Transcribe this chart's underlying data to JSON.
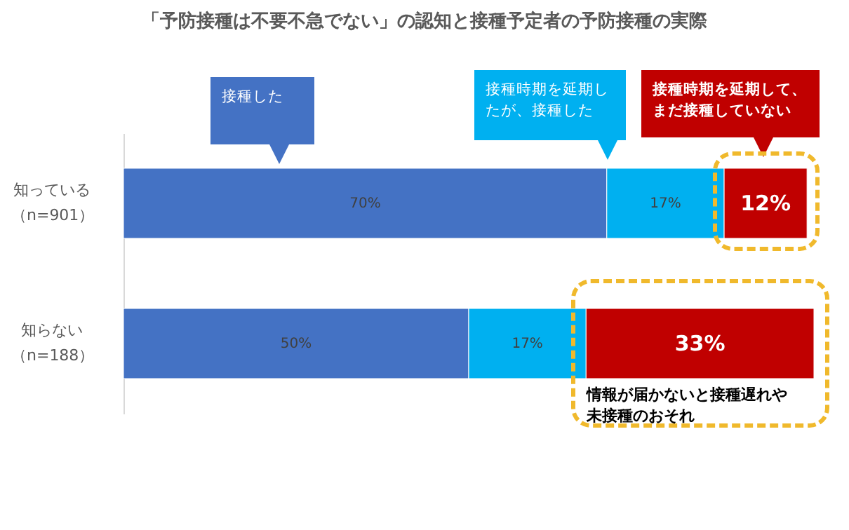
{
  "chart_data": {
    "type": "bar",
    "orientation": "horizontal",
    "stacked": true,
    "title": "「予防接種は不要不急でない」の認知と接種予定者の予防接種の実際",
    "categories": [
      "知っている（n=901）",
      "知らない（n=188）"
    ],
    "series": [
      {
        "name": "接種した",
        "color": "#4472c4",
        "values": [
          70,
          50
        ],
        "value_labels": [
          "70%",
          "50%"
        ]
      },
      {
        "name": "接種時期を延期したが、接種した",
        "color": "#00b0f0",
        "values": [
          17,
          17
        ],
        "value_labels": [
          "17%",
          "17%"
        ]
      },
      {
        "name": "接種時期を延期して、まだ接種していない",
        "color": "#c00000",
        "values": [
          12,
          33
        ],
        "value_labels": [
          "12%",
          "33%"
        ]
      }
    ],
    "annotations": [
      "情報が届かないと接種遅れや未接種のおそれ"
    ]
  }
}
